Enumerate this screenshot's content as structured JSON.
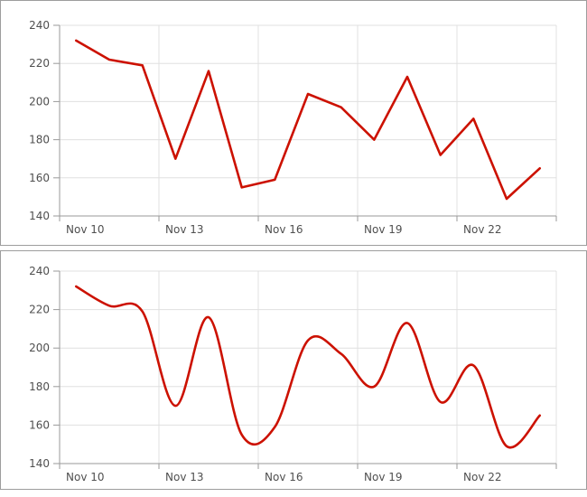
{
  "page": {
    "title": "",
    "background_color": "#ffffff",
    "panel_border_color": "#9d9d9d"
  },
  "colors": {
    "line": "#cc1100",
    "grid": "#e0e0e0",
    "axis": "#9a9a9a",
    "label": "#4f4f4f",
    "background": "#ffffff"
  },
  "chart_data": [
    {
      "type": "line",
      "title": "",
      "interpolation": "linear",
      "categories": [
        "Nov 10",
        "Nov 11",
        "Nov 12",
        "Nov 13",
        "Nov 14",
        "Nov 15",
        "Nov 16",
        "Nov 17",
        "Nov 18",
        "Nov 19",
        "Nov 20",
        "Nov 21",
        "Nov 22",
        "Nov 23",
        "Nov 24"
      ],
      "values": [
        232,
        222,
        219,
        170,
        216,
        155,
        159,
        204,
        197,
        180,
        213,
        172,
        191,
        149,
        165
      ],
      "xlabel": "",
      "ylabel": "",
      "ylim": [
        140,
        240
      ],
      "y_ticks": [
        240,
        220,
        200,
        180,
        160,
        140
      ],
      "x_tick_labels": [
        "Nov 10",
        "Nov 13",
        "Nov 16",
        "Nov 19",
        "Nov 22"
      ],
      "x_tick_every": 3,
      "grid": true,
      "legend": "none",
      "line_color": "#cc1100"
    },
    {
      "type": "line",
      "title": "",
      "interpolation": "smooth",
      "categories": [
        "Nov 10",
        "Nov 11",
        "Nov 12",
        "Nov 13",
        "Nov 14",
        "Nov 15",
        "Nov 16",
        "Nov 17",
        "Nov 18",
        "Nov 19",
        "Nov 20",
        "Nov 21",
        "Nov 22",
        "Nov 23",
        "Nov 24"
      ],
      "values": [
        232,
        222,
        219,
        170,
        216,
        155,
        159,
        204,
        197,
        180,
        213,
        172,
        191,
        149,
        165
      ],
      "xlabel": "",
      "ylabel": "",
      "ylim": [
        140,
        240
      ],
      "y_ticks": [
        240,
        220,
        200,
        180,
        160,
        140
      ],
      "x_tick_labels": [
        "Nov 10",
        "Nov 13",
        "Nov 16",
        "Nov 19",
        "Nov 22"
      ],
      "x_tick_every": 3,
      "grid": true,
      "legend": "none",
      "line_color": "#cc1100"
    }
  ]
}
